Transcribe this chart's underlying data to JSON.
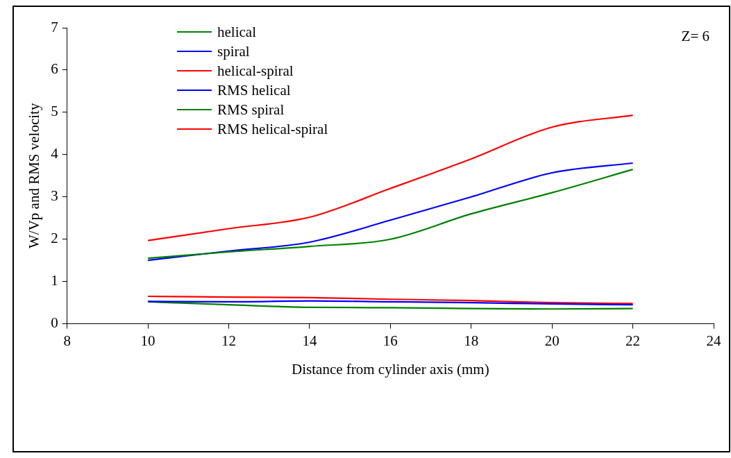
{
  "chart_data": {
    "type": "line",
    "xlabel": "Distance from cylinder axis (mm)",
    "ylabel": "W/Vp and RMS velocity",
    "annotations": [
      "Z= 6"
    ],
    "x": [
      10,
      12,
      14,
      16,
      18,
      20,
      22
    ],
    "xlim": [
      8,
      24
    ],
    "xticks": [
      8,
      10,
      12,
      14,
      16,
      18,
      20,
      22,
      24
    ],
    "ylim": [
      0,
      7
    ],
    "yticks": [
      0,
      1,
      2,
      3,
      4,
      5,
      6,
      7
    ],
    "grid": false,
    "legend": "top left",
    "marker": "none",
    "line_style": "solid",
    "series": [
      {
        "name": "helical",
        "color": "#008000",
        "values": [
          1.55,
          1.7,
          1.83,
          2.0,
          2.6,
          3.1,
          3.65
        ]
      },
      {
        "name": "spiral",
        "color": "#0000ff",
        "values": [
          1.5,
          1.72,
          1.93,
          2.45,
          3.0,
          3.57,
          3.8
        ]
      },
      {
        "name": "helical-spiral",
        "color": "#ff0000",
        "values": [
          1.97,
          2.25,
          2.52,
          3.2,
          3.9,
          4.65,
          4.93
        ]
      },
      {
        "name": "RMS helical",
        "color": "#0000ff",
        "values": [
          0.53,
          0.52,
          0.54,
          0.52,
          0.5,
          0.47,
          0.45
        ]
      },
      {
        "name": "RMS spiral",
        "color": "#008000",
        "values": [
          0.52,
          0.45,
          0.39,
          0.38,
          0.36,
          0.35,
          0.36
        ]
      },
      {
        "name": "RMS helical-spiral",
        "color": "#ff0000",
        "values": [
          0.65,
          0.63,
          0.62,
          0.58,
          0.55,
          0.5,
          0.48
        ]
      }
    ]
  }
}
